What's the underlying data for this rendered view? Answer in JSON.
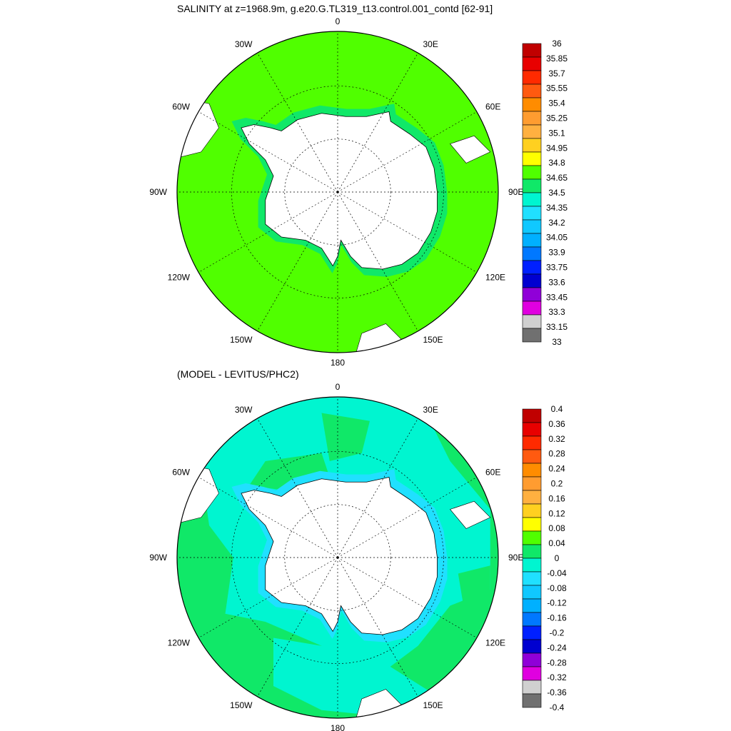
{
  "panels": [
    {
      "id": "salinity",
      "title": "SALINITY at z=1968.9m, g.e20.G.TL319_t13.control.001_contd [62-91]",
      "lon_labels": [
        "0",
        "30E",
        "60E",
        "90E",
        "120E",
        "150E",
        "180",
        "150W",
        "120W",
        "90W",
        "60W",
        "30W"
      ],
      "colorbar": {
        "labels": [
          "36",
          "35.85",
          "35.7",
          "35.55",
          "35.4",
          "35.25",
          "35.1",
          "34.95",
          "34.8",
          "34.65",
          "34.5",
          "34.35",
          "34.2",
          "34.05",
          "33.9",
          "33.75",
          "33.6",
          "33.45",
          "33.3",
          "33.15",
          "33"
        ],
        "colors": [
          "#c00000",
          "#e80000",
          "#ff2a00",
          "#ff5a10",
          "#ff8c00",
          "#ff9c30",
          "#ffb040",
          "#ffd020",
          "#ffff00",
          "#50ff00",
          "#10e868",
          "#00f5d0",
          "#20e0ff",
          "#10c8ff",
          "#00b0ff",
          "#0078ff",
          "#0020ff",
          "#0000d0",
          "#9000d8",
          "#e000e0",
          "#d0d0d0",
          "#707070"
        ]
      },
      "field_color": "#50ff00"
    },
    {
      "id": "difference",
      "title": "(MODEL - LEVITUS/PHC2)",
      "lon_labels": [
        "0",
        "30E",
        "60E",
        "90E",
        "120E",
        "150E",
        "180",
        "150W",
        "120W",
        "90W",
        "60W",
        "30W"
      ],
      "colorbar": {
        "labels": [
          "0.4",
          "0.36",
          "0.32",
          "0.28",
          "0.24",
          "0.2",
          "0.16",
          "0.12",
          "0.08",
          "0.04",
          "0",
          "-0.04",
          "-0.08",
          "-0.12",
          "-0.16",
          "-0.2",
          "-0.24",
          "-0.28",
          "-0.32",
          "-0.36",
          "-0.4"
        ],
        "colors": [
          "#c00000",
          "#e80000",
          "#ff2a00",
          "#ff5a10",
          "#ff8c00",
          "#ff9c30",
          "#ffb040",
          "#ffd020",
          "#ffff00",
          "#50ff00",
          "#10e868",
          "#00f5d0",
          "#20e0ff",
          "#10c8ff",
          "#00b0ff",
          "#0078ff",
          "#0020ff",
          "#0000d0",
          "#9000d8",
          "#e000e0",
          "#d0d0d0",
          "#707070"
        ]
      },
      "field_color": "#10e868",
      "secondary_color": "#00f5d0"
    }
  ]
}
